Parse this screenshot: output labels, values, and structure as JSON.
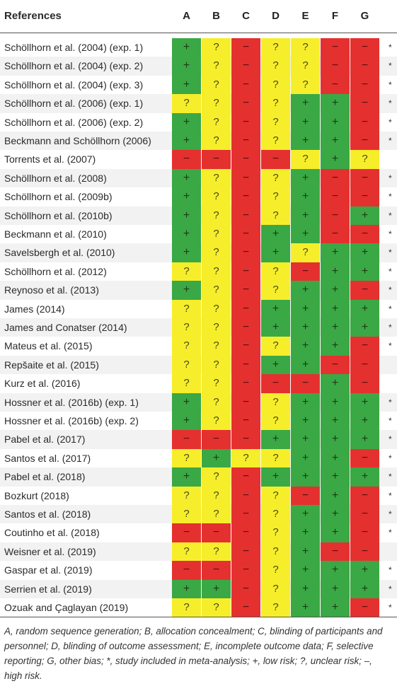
{
  "header": {
    "references": "References",
    "columns": [
      "A",
      "B",
      "C",
      "D",
      "E",
      "F",
      "G"
    ]
  },
  "symbols": {
    "+": "+",
    "?": "?",
    "-": "−"
  },
  "colors": {
    "low_risk": "#3aa845",
    "unclear_risk": "#f6ee2a",
    "high_risk": "#e53030",
    "alt_row": "#f2f2f2"
  },
  "rows": [
    {
      "ref": "Schöllhorn et al. (2004) (exp. 1)",
      "marks": [
        "+",
        "?",
        "-",
        "?",
        "?",
        "-",
        "-"
      ],
      "star": "*"
    },
    {
      "ref": "Schöllhorn et al. (2004) (exp. 2)",
      "marks": [
        "+",
        "?",
        "-",
        "?",
        "?",
        "-",
        "-"
      ],
      "star": "*"
    },
    {
      "ref": "Schöllhorn et al. (2004) (exp. 3)",
      "marks": [
        "+",
        "?",
        "-",
        "?",
        "?",
        "-",
        "-"
      ],
      "star": "*"
    },
    {
      "ref": "Schöllhorn et al. (2006) (exp. 1)",
      "marks": [
        "?",
        "?",
        "-",
        "?",
        "+",
        "+",
        "-"
      ],
      "star": "*"
    },
    {
      "ref": "Schöllhorn et al. (2006) (exp. 2)",
      "marks": [
        "+",
        "?",
        "-",
        "?",
        "+",
        "+",
        "-"
      ],
      "star": "*"
    },
    {
      "ref": "Beckmann and Schöllhorn (2006)",
      "marks": [
        "+",
        "?",
        "-",
        "?",
        "+",
        "+",
        "-"
      ],
      "star": "*"
    },
    {
      "ref": "Torrents et al. (2007)",
      "marks": [
        "-",
        "-",
        "-",
        "-",
        "?",
        "+",
        "?"
      ],
      "star": ""
    },
    {
      "ref": "Schöllhorn et al. (2008)",
      "marks": [
        "+",
        "?",
        "-",
        "?",
        "+",
        "-",
        "-"
      ],
      "star": "*"
    },
    {
      "ref": "Schöllhorn et al. (2009b)",
      "marks": [
        "+",
        "?",
        "-",
        "?",
        "+",
        "-",
        "-"
      ],
      "star": "*"
    },
    {
      "ref": "Schöllhorn et al. (2010b)",
      "marks": [
        "+",
        "?",
        "-",
        "?",
        "+",
        "-",
        "+"
      ],
      "star": "*"
    },
    {
      "ref": "Beckmann et al. (2010)",
      "marks": [
        "+",
        "?",
        "-",
        "+",
        "+",
        "-",
        "-"
      ],
      "star": "*"
    },
    {
      "ref": "Savelsbergh et al. (2010)",
      "marks": [
        "+",
        "?",
        "-",
        "+",
        "?",
        "+",
        "+"
      ],
      "star": "*"
    },
    {
      "ref": "Schöllhorn et al. (2012)",
      "marks": [
        "?",
        "?",
        "-",
        "?",
        "-",
        "+",
        "+"
      ],
      "star": "*"
    },
    {
      "ref": "Reynoso et al. (2013)",
      "marks": [
        "+",
        "?",
        "-",
        "?",
        "+",
        "+",
        "-"
      ],
      "star": "*"
    },
    {
      "ref": "James (2014)",
      "marks": [
        "?",
        "?",
        "-",
        "+",
        "+",
        "+",
        "+"
      ],
      "star": "*"
    },
    {
      "ref": "James and Conatser (2014)",
      "marks": [
        "?",
        "?",
        "-",
        "+",
        "+",
        "+",
        "+"
      ],
      "star": "*"
    },
    {
      "ref": "Mateus et al. (2015)",
      "marks": [
        "?",
        "?",
        "-",
        "?",
        "+",
        "+",
        "-"
      ],
      "star": "*"
    },
    {
      "ref": "Repšaite et al. (2015)",
      "marks": [
        "?",
        "?",
        "-",
        "+",
        "+",
        "-",
        "-"
      ],
      "star": ""
    },
    {
      "ref": "Kurz et al. (2016)",
      "marks": [
        "?",
        "?",
        "-",
        "-",
        "-",
        "+",
        "-"
      ],
      "star": ""
    },
    {
      "ref": "Hossner et al. (2016b) (exp. 1)",
      "marks": [
        "+",
        "?",
        "-",
        "?",
        "+",
        "+",
        "+"
      ],
      "star": "*"
    },
    {
      "ref": "Hossner et al. (2016b) (exp. 2)",
      "marks": [
        "+",
        "?",
        "-",
        "?",
        "+",
        "+",
        "+"
      ],
      "star": "*"
    },
    {
      "ref": "Pabel et al. (2017)",
      "marks": [
        "-",
        "-",
        "-",
        "+",
        "+",
        "+",
        "+"
      ],
      "star": "*"
    },
    {
      "ref": "Santos et al. (2017)",
      "marks": [
        "?",
        "+",
        "?",
        "?",
        "+",
        "+",
        "-"
      ],
      "star": "*"
    },
    {
      "ref": "Pabel et al. (2018)",
      "marks": [
        "+",
        "?",
        "-",
        "+",
        "+",
        "+",
        "+"
      ],
      "star": "*"
    },
    {
      "ref": "Bozkurt (2018)",
      "marks": [
        "?",
        "?",
        "-",
        "?",
        "-",
        "+",
        "-"
      ],
      "star": "*"
    },
    {
      "ref": "Santos et al. (2018)",
      "marks": [
        "?",
        "?",
        "-",
        "?",
        "+",
        "+",
        "-"
      ],
      "star": "*"
    },
    {
      "ref": "Coutinho et al. (2018)",
      "marks": [
        "-",
        "-",
        "-",
        "?",
        "+",
        "+",
        "-"
      ],
      "star": "*"
    },
    {
      "ref": "Weisner et al. (2019)",
      "marks": [
        "?",
        "?",
        "-",
        "?",
        "+",
        "-",
        "-"
      ],
      "star": ""
    },
    {
      "ref": "Gaspar et al. (2019)",
      "marks": [
        "-",
        "-",
        "-",
        "?",
        "+",
        "+",
        "+"
      ],
      "star": "*"
    },
    {
      "ref": "Serrien et al. (2019)",
      "marks": [
        "+",
        "+",
        "-",
        "?",
        "+",
        "+",
        "+"
      ],
      "star": "*"
    },
    {
      "ref": "Ozuak and Çaglayan (2019)",
      "marks": [
        "?",
        "?",
        "-",
        "?",
        "+",
        "+",
        "-"
      ],
      "star": "*"
    }
  ],
  "footnote": "A, random sequence generation; B, allocation concealment; C, blinding of participants and personnel; D, blinding of outcome assessment; E, incomplete outcome data; F, selective reporting; G, other bias; *, study included in meta-analysis; +, low risk; ?, unclear risk; –, high risk."
}
